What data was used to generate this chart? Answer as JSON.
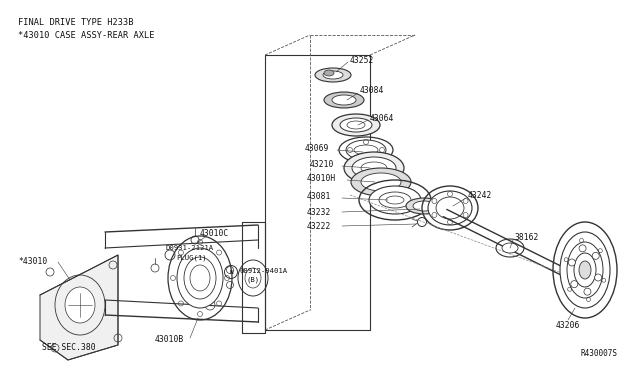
{
  "background_color": "#ffffff",
  "fig_width": 6.4,
  "fig_height": 3.72,
  "dpi": 100,
  "header_text1": "FINAL DRIVE TYPE H233B",
  "header_text2": "*43010 CASE ASSY-REAR AXLE",
  "footer_text": "R430007S",
  "see_text": "SEE SEC.380",
  "line_color": "#333333",
  "text_color": "#111111",
  "label_fontsize": 5.8,
  "header_fontsize": 6.2
}
